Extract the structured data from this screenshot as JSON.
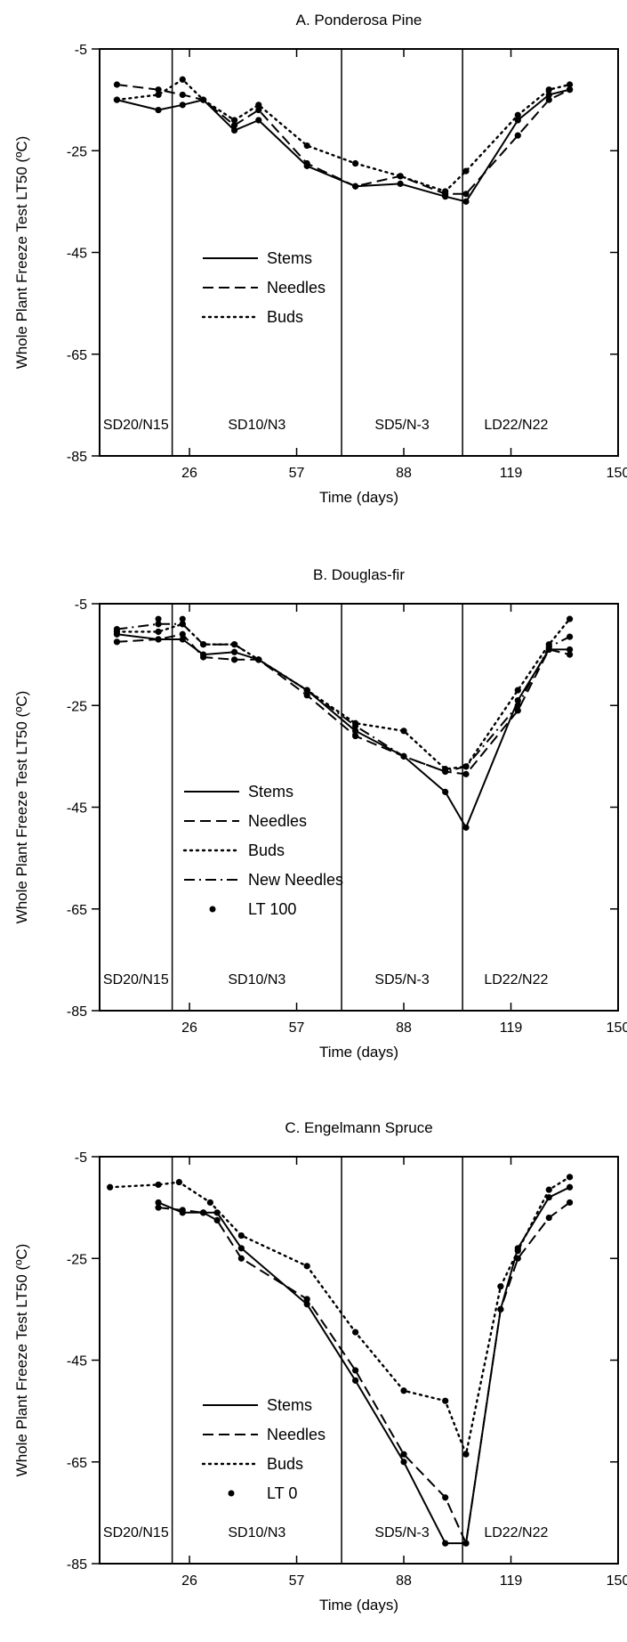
{
  "chart_data": [
    {
      "type": "line",
      "title": "A. Ponderosa Pine",
      "xlabel": "Time (days)",
      "ylabel": "Whole Plant Freeze Test LT50 (ºC)",
      "xticks": [
        "26",
        "57",
        "88",
        "119",
        "150"
      ],
      "yticks": [
        "-5",
        "-25",
        "-45",
        "-65",
        "-85"
      ],
      "xlim": [
        0,
        150
      ],
      "ylim": [
        -85,
        -5
      ],
      "period_labels": [
        "SD20/N15",
        "SD10/N3",
        "SD5/N-3",
        "LD22/N22"
      ],
      "period_boundaries": [
        21,
        70,
        105
      ],
      "series": [
        {
          "name": "Stems",
          "style": "solid",
          "x": [
            5,
            17,
            24,
            30,
            39,
            46,
            60,
            74,
            87,
            100,
            106,
            121,
            130,
            136
          ],
          "y": [
            -15,
            -17,
            -16,
            -15,
            -21,
            -19,
            -28,
            -32,
            -31.5,
            -34,
            -35,
            -19,
            -14,
            -13
          ]
        },
        {
          "name": "Needles",
          "style": "dashed",
          "x": [
            5,
            17,
            24,
            30,
            39,
            46,
            60,
            74,
            87,
            100,
            106,
            121,
            130,
            136
          ],
          "y": [
            -12,
            -13,
            -14,
            -15,
            -20,
            -17,
            -27.5,
            -32,
            -30,
            -33.5,
            -33.5,
            -22,
            -15,
            -13
          ]
        },
        {
          "name": "Buds",
          "style": "dotted",
          "x": [
            5,
            17,
            24,
            30,
            39,
            46,
            60,
            74,
            87,
            100,
            106,
            121,
            130,
            136
          ],
          "y": [
            -15,
            -14,
            -11,
            -15,
            -19,
            -16,
            -24,
            -27.5,
            -30,
            -33,
            -29,
            -18,
            -13,
            -12
          ]
        }
      ]
    },
    {
      "type": "line",
      "title": "B. Douglas-fir",
      "xlabel": "Time (days)",
      "ylabel": "Whole Plant Freeze Test LT50 (ºC)",
      "xticks": [
        "26",
        "57",
        "88",
        "119",
        "150"
      ],
      "yticks": [
        "-5",
        "-25",
        "-45",
        "-65",
        "-85"
      ],
      "xlim": [
        0,
        150
      ],
      "ylim": [
        -85,
        -5
      ],
      "period_labels": [
        "SD20/N15",
        "SD10/N3",
        "SD5/N-3",
        "LD22/N22"
      ],
      "period_boundaries": [
        21,
        70,
        105
      ],
      "series": [
        {
          "name": "Stems",
          "style": "solid",
          "x": [
            5,
            17,
            24,
            30,
            39,
            46,
            60,
            74,
            88,
            100,
            106,
            121,
            130,
            136
          ],
          "y": [
            -11,
            -12,
            -12,
            -15,
            -14.5,
            -16,
            -22,
            -30,
            -35,
            -42,
            -49,
            -24,
            -14,
            -14
          ]
        },
        {
          "name": "Needles",
          "style": "dashed",
          "x": [
            5,
            17,
            24,
            30,
            39,
            46,
            60,
            74,
            88,
            100,
            106,
            121,
            130,
            136
          ],
          "y": [
            -12.5,
            -12,
            -11,
            -15.5,
            -16,
            -16,
            -23,
            -31,
            -35,
            -38,
            -38.5,
            -26,
            -14,
            -15
          ]
        },
        {
          "name": "Buds",
          "style": "dotted",
          "x": [
            5,
            17,
            24,
            30,
            39,
            46,
            60,
            74,
            88,
            100,
            106,
            121,
            130,
            136
          ],
          "y": [
            -10.5,
            -10.5,
            -9,
            -13,
            -13,
            -16,
            -22,
            -28.5,
            -30,
            -37.5,
            -37,
            -22,
            -13,
            -8
          ]
        },
        {
          "name": "New Needles",
          "style": "dashdot",
          "x": [
            5,
            17,
            24,
            30,
            39,
            46,
            60,
            74,
            88,
            100,
            106,
            121,
            130,
            136
          ],
          "y": [
            -10,
            -9,
            -9,
            -13,
            -13,
            -16,
            -22,
            -29,
            -35,
            -38,
            -37,
            -25,
            -13.5,
            -11.5
          ]
        },
        {
          "name": "LT 100",
          "style": "points",
          "x": [
            17,
            24
          ],
          "y": [
            -8,
            -8
          ]
        }
      ]
    },
    {
      "type": "line",
      "title": "C. Engelmann Spruce",
      "xlabel": "Time (days)",
      "ylabel": "Whole Plant Freeze Test LT50 (ºC)",
      "xticks": [
        "26",
        "57",
        "88",
        "119",
        "150"
      ],
      "yticks": [
        "-5",
        "-25",
        "-45",
        "-65",
        "-85"
      ],
      "xlim": [
        0,
        150
      ],
      "ylim": [
        -85,
        -5
      ],
      "period_labels": [
        "SD20/N15",
        "SD10/N3",
        "SD5/N-3",
        "LD22/N22"
      ],
      "period_boundaries": [
        21,
        70,
        105
      ],
      "series": [
        {
          "name": "Stems",
          "style": "solid",
          "x": [
            17,
            24,
            30,
            34,
            41,
            60,
            74,
            88,
            100,
            106,
            116,
            121,
            130,
            136
          ],
          "y": [
            -14,
            -16,
            -16,
            -16,
            -23,
            -34,
            -49,
            -65,
            -81,
            -81,
            -35,
            -23,
            -13,
            -11
          ]
        },
        {
          "name": "Needles",
          "style": "dashed",
          "x": [
            17,
            24,
            30,
            34,
            41,
            60,
            74,
            88,
            100,
            106,
            116,
            121,
            130,
            136
          ],
          "y": [
            -15,
            -15.5,
            -16,
            -17.5,
            -25,
            -33,
            -47,
            -63.5,
            -72,
            -81,
            -35,
            -25,
            -17,
            -14
          ]
        },
        {
          "name": "Buds",
          "style": "dotted",
          "x": [
            3,
            17,
            23,
            32,
            41,
            60,
            74,
            88,
            100,
            106,
            116,
            121,
            130,
            136
          ],
          "y": [
            -11,
            -10.5,
            -10,
            -14,
            -20.5,
            -26.5,
            -39.5,
            -51,
            -53,
            -63.5,
            -30.5,
            -23.5,
            -11.5,
            -9
          ]
        },
        {
          "name": "LT 0",
          "style": "points",
          "x": [],
          "y": []
        }
      ]
    }
  ]
}
